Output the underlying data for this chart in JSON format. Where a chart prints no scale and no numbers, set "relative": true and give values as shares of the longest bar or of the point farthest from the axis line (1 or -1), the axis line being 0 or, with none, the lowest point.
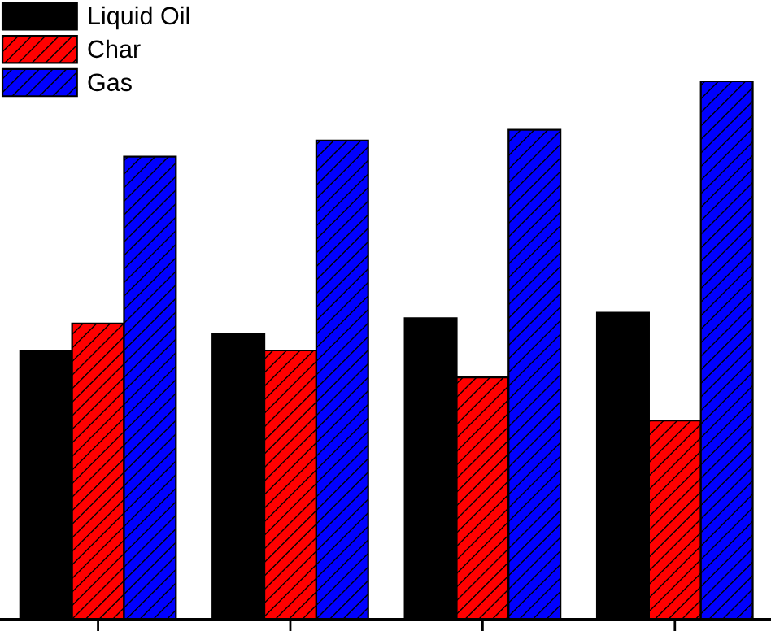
{
  "chart_data": {
    "type": "bar",
    "relative": true,
    "categories": [
      null,
      null,
      null,
      null
    ],
    "series": [
      {
        "name": "Liquid Oil",
        "color": "#000000",
        "values": [
          0.5,
          0.53,
          0.56,
          0.57
        ]
      },
      {
        "name": "Char",
        "color": "#ff0000",
        "values": [
          0.55,
          0.5,
          0.45,
          0.37
        ]
      },
      {
        "name": "Gas",
        "color": "#0000ff",
        "values": [
          0.86,
          0.89,
          0.91,
          1.0
        ]
      }
    ],
    "legend": "top left",
    "grid": false
  }
}
